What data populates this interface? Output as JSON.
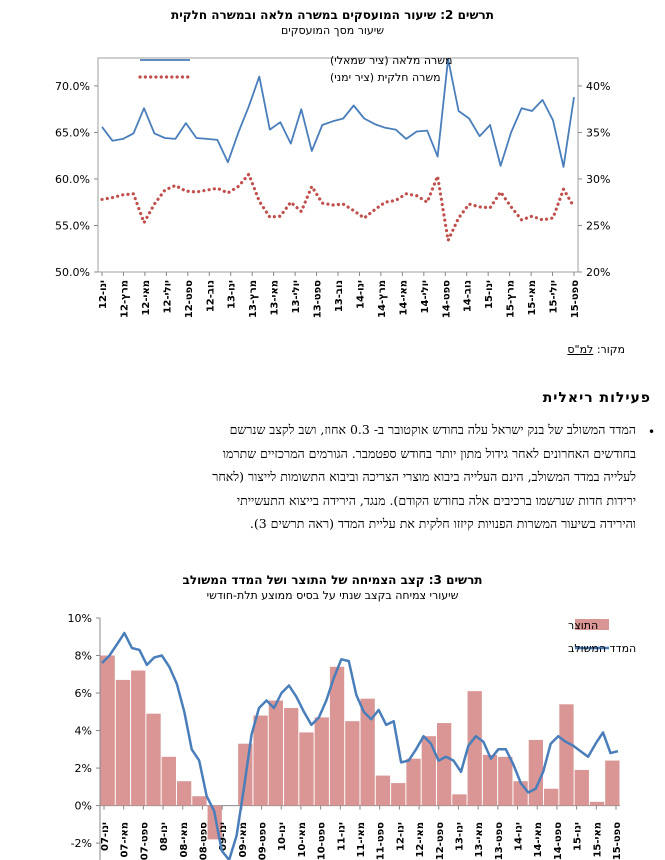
{
  "chart_data": [
    {
      "type": "line",
      "title": "תרשים 2: שיעור המועסקים במשרה מלאה ובמשרה חלקית",
      "subtitle": "שיעור מסך המועסקים",
      "y_left_ticks": [
        "70.0%",
        "65.0%",
        "60.0%",
        "55.0%",
        "50.0%"
      ],
      "y_left_range": [
        50,
        73
      ],
      "y_right_ticks": [
        "40%",
        "35%",
        "30%",
        "25%",
        "20%"
      ],
      "y_right_range": [
        20,
        43
      ],
      "x_tick_labels": [
        "ינו-12",
        "מרץ-12",
        "מאי-12",
        "יולי-12",
        "ספט-12",
        "נוב-12",
        "ינו-13",
        "מרץ-13",
        "מאי-13",
        "יולי-13",
        "ספט-13",
        "נוב-13",
        "ינו-14",
        "מרץ-14",
        "מאי-14",
        "יולי-14",
        "ספט-14",
        "נוב-14",
        "ינו-15",
        "מרץ-15",
        "מאי-15",
        "יולי-15",
        "ספט-15"
      ],
      "legend_position": "top-left",
      "series": [
        {
          "name": "משרה מלאה (ציר שמאלי)",
          "axis": "left",
          "style": "solid",
          "color": "#4a7ebb",
          "values": [
            65.6,
            64.1,
            64.3,
            64.9,
            67.6,
            64.9,
            64.4,
            64.3,
            66.0,
            64.4,
            64.3,
            64.2,
            61.8,
            65.0,
            67.8,
            71.0,
            65.3,
            66.1,
            63.8,
            67.5,
            63.0,
            65.8,
            66.2,
            66.5,
            67.9,
            66.5,
            65.9,
            65.5,
            65.3,
            64.3,
            65.1,
            65.2,
            62.4,
            72.9,
            67.3,
            66.5,
            64.6,
            65.8,
            61.4,
            65.0,
            67.6,
            67.3,
            68.5,
            66.3,
            61.3,
            68.8
          ]
        },
        {
          "name": "משרה חלקית (ציר ימני)",
          "axis": "right",
          "style": "dotted",
          "color": "#c0504d",
          "values": [
            27.8,
            28.0,
            28.3,
            28.4,
            25.3,
            27.3,
            28.8,
            29.3,
            28.7,
            28.6,
            28.8,
            29.0,
            28.5,
            29.2,
            30.5,
            27.6,
            25.9,
            26.0,
            27.5,
            26.5,
            29.2,
            27.4,
            27.2,
            27.3,
            26.6,
            25.8,
            26.7,
            27.5,
            27.7,
            28.4,
            28.2,
            27.5,
            30.3,
            23.4,
            25.8,
            27.3,
            27.0,
            26.9,
            28.6,
            27.0,
            25.6,
            26.0,
            25.6,
            25.8,
            28.9,
            27.0
          ]
        }
      ]
    },
    {
      "type": "bar",
      "title": "תרשים 3: קצב הצמיחה של התוצר ושל המדד המשולב",
      "subtitle": "שיעורי צמיחה בקצב שנתי על בסיס ממוצע תלת-חודשי",
      "y_ticks": [
        "10%",
        "8%",
        "6%",
        "4%",
        "2%",
        "0%",
        "-2%"
      ],
      "y_range": [
        -2.9,
        10
      ],
      "x_tick_labels": [
        "ינו-07",
        "מאי-07",
        "ספט-07",
        "ינו-08",
        "מאי-08",
        "ספט-08",
        "ינו-09",
        "מאי-09",
        "ספט-09",
        "ינו-10",
        "מאי-10",
        "ספט-10",
        "ינו-11",
        "מאי-11",
        "ספט-11",
        "ינו-12",
        "מאי-12",
        "ספט-12",
        "ינו-13",
        "מאי-13",
        "ספט-13",
        "ינו-14",
        "מאי-14",
        "ספט-14",
        "ינו-15",
        "מאי-15",
        "ספט-15"
      ],
      "legend_position": "top-right",
      "series": [
        {
          "name": "התוצר",
          "style": "bar",
          "color": "#d99694",
          "values": [
            8.0,
            6.7,
            7.2,
            4.9,
            2.6,
            1.3,
            0.5,
            -1.8,
            0.0,
            3.3,
            4.8,
            5.6,
            5.2,
            3.9,
            4.7,
            7.4,
            4.5,
            5.7,
            1.6,
            1.2,
            2.5,
            3.7,
            4.4,
            0.6,
            6.1,
            2.7,
            2.6,
            1.3,
            3.5,
            0.9,
            5.4,
            1.9,
            0.2,
            2.4
          ]
        },
        {
          "name": "המדד המשולב",
          "style": "line",
          "color": "#4a7ebb",
          "values": [
            7.6,
            8.0,
            8.6,
            9.2,
            8.4,
            8.3,
            7.5,
            7.9,
            8.0,
            7.4,
            6.5,
            5.0,
            3.0,
            2.4,
            0.5,
            -0.3,
            -2.4,
            -2.9,
            -1.6,
            1.0,
            3.8,
            5.2,
            5.6,
            5.2,
            6.0,
            6.4,
            5.8,
            5.0,
            4.3,
            4.7,
            5.6,
            6.8,
            7.8,
            7.7,
            5.9,
            5.0,
            4.6,
            5.1,
            4.3,
            4.5,
            2.3,
            2.4,
            3.0,
            3.7,
            3.3,
            2.4,
            2.6,
            2.4,
            1.8,
            3.2,
            3.7,
            3.4,
            2.5,
            3.0,
            3.0,
            2.2,
            1.2,
            0.7,
            0.9,
            1.8,
            3.3,
            3.7,
            3.4,
            3.2,
            2.9,
            2.6,
            3.3,
            3.9,
            2.8,
            2.9
          ]
        }
      ]
    }
  ],
  "source_label": "מקור:",
  "source_value": "למ\"ס",
  "section_title": "פעילות ריאלית",
  "bullet": "•",
  "paragraph_lines": [
    "המדד המשולב של בנק ישראל עלה בחודש אוקטובר ב- 0.3 אחוז, ושב לקצב שנרשם",
    "בחודשים האחרונים לאחר גידול מתון יותר בחודש ספטמבר. הגורמים המרכזיים שתרמו",
    "לעלייה במדד המשולב, הינם העלייה ביבוא מוצרי הצריכה וביבוא התשומות לייצור (לאחר",
    "ירידות חדות שנרשמו ברכיבים אלה בחודש הקודם). מנגד, הירידה בייצוא התעשייתי",
    "והירידה בשיעור המשרות הפנויות קיזזו חלקית את עליית המדד (ראה תרשים 3)."
  ]
}
